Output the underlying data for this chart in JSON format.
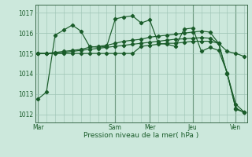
{
  "title": "",
  "xlabel": "Pression niveau de la mer( hPa )",
  "ylabel": "",
  "background_color": "#cce8dc",
  "grid_color": "#9dc4b4",
  "line_color": "#1a5c2a",
  "vline_color": "#3a6a4a",
  "ylim": [
    1011.6,
    1017.4
  ],
  "yticks": [
    1012,
    1013,
    1014,
    1015,
    1016,
    1017
  ],
  "day_labels": [
    "Mar",
    "Sam",
    "Mer",
    "Jeu",
    "Ven"
  ],
  "day_positions": [
    0,
    9,
    13,
    18,
    23
  ],
  "n_points": 25,
  "series": [
    [
      1012.75,
      1013.1,
      1015.9,
      1016.15,
      1016.4,
      1016.1,
      1015.35,
      1015.3,
      1015.35,
      1016.7,
      1016.8,
      1016.85,
      1016.5,
      1016.65,
      1015.5,
      1015.45,
      1015.35,
      1016.2,
      1016.25,
      1015.1,
      1015.3,
      1015.15,
      1014.05,
      1012.25,
      1012.1
    ],
    [
      1015.0,
      1015.0,
      1015.05,
      1015.1,
      1015.15,
      1015.2,
      1015.3,
      1015.35,
      1015.4,
      1015.5,
      1015.6,
      1015.65,
      1015.7,
      1015.8,
      1015.85,
      1015.9,
      1015.95,
      1016.0,
      1016.05,
      1016.1,
      1016.05,
      1015.5,
      1014.0,
      1012.5,
      1012.1
    ],
    [
      1015.0,
      1015.0,
      1015.0,
      1015.05,
      1015.1,
      1015.15,
      1015.2,
      1015.25,
      1015.3,
      1015.35,
      1015.4,
      1015.45,
      1015.5,
      1015.55,
      1015.6,
      1015.65,
      1015.7,
      1015.72,
      1015.75,
      1015.78,
      1015.75,
      1015.5,
      1015.1,
      1015.0,
      1014.85
    ],
    [
      1015.0,
      1015.0,
      1015.0,
      1015.0,
      1015.0,
      1015.0,
      1015.0,
      1015.0,
      1015.0,
      1015.0,
      1015.0,
      1015.0,
      1015.35,
      1015.4,
      1015.45,
      1015.5,
      1015.5,
      1015.55,
      1015.6,
      1015.6,
      1015.6,
      1015.5,
      1014.0,
      1012.3,
      1012.1
    ]
  ]
}
